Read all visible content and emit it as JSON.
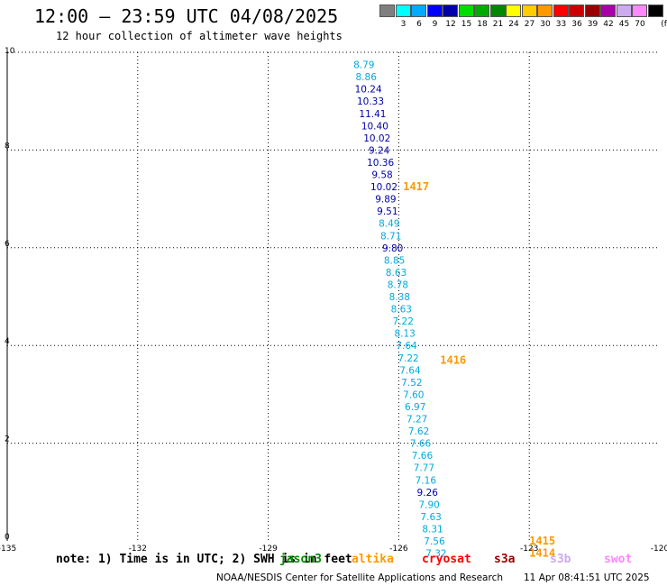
{
  "header": {
    "title": "12:00 – 23:59 UTC 04/08/2025",
    "subtitle": "12 hour collection of altimeter wave heights"
  },
  "legend": {
    "unit": "(ft)",
    "items": [
      {
        "label": "",
        "color": "#7f7f7f"
      },
      {
        "label": "3",
        "color": "#00ffff"
      },
      {
        "label": "6",
        "color": "#00aaff"
      },
      {
        "label": "9",
        "color": "#0000ff"
      },
      {
        "label": "12",
        "color": "#0000aa"
      },
      {
        "label": "15",
        "color": "#00dd00"
      },
      {
        "label": "18",
        "color": "#00aa00"
      },
      {
        "label": "21",
        "color": "#008800"
      },
      {
        "label": "24",
        "color": "#ffff00"
      },
      {
        "label": "27",
        "color": "#ffcc00"
      },
      {
        "label": "30",
        "color": "#ff9900"
      },
      {
        "label": "33",
        "color": "#ff0000"
      },
      {
        "label": "36",
        "color": "#cc0000"
      },
      {
        "label": "39",
        "color": "#990000"
      },
      {
        "label": "42",
        "color": "#aa00aa"
      },
      {
        "label": "45",
        "color": "#ccaaee"
      },
      {
        "label": "70",
        "color": "#ff88ff"
      },
      {
        "label": "",
        "color": "#000000"
      }
    ]
  },
  "chart_data": {
    "type": "scatter",
    "xlim": [
      -135,
      -120
    ],
    "ylim": [
      0,
      10
    ],
    "x_ticks": [
      "-135",
      "-132",
      "-129",
      "-126",
      "-123",
      "-120"
    ],
    "y_ticks": [
      "0",
      "2",
      "4",
      "6",
      "8",
      "10"
    ],
    "grid": true,
    "colors": {
      "light": "#00aadd",
      "dark": "#0000aa",
      "time": "#ff9900"
    },
    "points": [
      {
        "x": -126.8,
        "y": 9.75,
        "value": "8.79",
        "shade": "light"
      },
      {
        "x": -126.75,
        "y": 9.5,
        "value": "8.86",
        "shade": "light"
      },
      {
        "x": -126.7,
        "y": 9.25,
        "value": "10.24",
        "shade": "dark"
      },
      {
        "x": -126.65,
        "y": 9.0,
        "value": "10.33",
        "shade": "dark"
      },
      {
        "x": -126.6,
        "y": 8.75,
        "value": "11.41",
        "shade": "dark"
      },
      {
        "x": -126.55,
        "y": 8.5,
        "value": "10.40",
        "shade": "dark"
      },
      {
        "x": -126.5,
        "y": 8.25,
        "value": "10.02",
        "shade": "dark"
      },
      {
        "x": -126.45,
        "y": 8.0,
        "value": "9.24",
        "shade": "dark"
      },
      {
        "x": -126.42,
        "y": 7.75,
        "value": "10.36",
        "shade": "dark"
      },
      {
        "x": -126.38,
        "y": 7.5,
        "value": "9.58",
        "shade": "dark"
      },
      {
        "x": -126.34,
        "y": 7.25,
        "value": "10.02",
        "shade": "dark"
      },
      {
        "x": -126.3,
        "y": 7.0,
        "value": "9.89",
        "shade": "dark"
      },
      {
        "x": -126.26,
        "y": 6.75,
        "value": "9.51",
        "shade": "dark"
      },
      {
        "x": -126.22,
        "y": 6.5,
        "value": "8.49",
        "shade": "light"
      },
      {
        "x": -126.18,
        "y": 6.25,
        "value": "8.71",
        "shade": "light"
      },
      {
        "x": -126.14,
        "y": 6.0,
        "value": "9.80",
        "shade": "dark"
      },
      {
        "x": -126.1,
        "y": 5.75,
        "value": "8.85",
        "shade": "light"
      },
      {
        "x": -126.06,
        "y": 5.5,
        "value": "8.63",
        "shade": "light"
      },
      {
        "x": -126.02,
        "y": 5.25,
        "value": "8.78",
        "shade": "light"
      },
      {
        "x": -125.98,
        "y": 5.0,
        "value": "8.38",
        "shade": "light"
      },
      {
        "x": -125.94,
        "y": 4.75,
        "value": "8.63",
        "shade": "light"
      },
      {
        "x": -125.9,
        "y": 4.5,
        "value": "7.22",
        "shade": "light"
      },
      {
        "x": -125.86,
        "y": 4.25,
        "value": "8.13",
        "shade": "light"
      },
      {
        "x": -125.82,
        "y": 4.0,
        "value": "7.64",
        "shade": "light"
      },
      {
        "x": -125.78,
        "y": 3.75,
        "value": "7.22",
        "shade": "light"
      },
      {
        "x": -125.74,
        "y": 3.5,
        "value": "7.64",
        "shade": "light"
      },
      {
        "x": -125.7,
        "y": 3.25,
        "value": "7.52",
        "shade": "light"
      },
      {
        "x": -125.66,
        "y": 3.0,
        "value": "7.60",
        "shade": "light"
      },
      {
        "x": -125.62,
        "y": 2.75,
        "value": "6.97",
        "shade": "light"
      },
      {
        "x": -125.58,
        "y": 2.5,
        "value": "7.27",
        "shade": "light"
      },
      {
        "x": -125.54,
        "y": 2.25,
        "value": "7.62",
        "shade": "light"
      },
      {
        "x": -125.5,
        "y": 2.0,
        "value": "7.66",
        "shade": "light"
      },
      {
        "x": -125.46,
        "y": 1.75,
        "value": "7.66",
        "shade": "light"
      },
      {
        "x": -125.42,
        "y": 1.5,
        "value": "7.77",
        "shade": "light"
      },
      {
        "x": -125.38,
        "y": 1.25,
        "value": "7.16",
        "shade": "light"
      },
      {
        "x": -125.34,
        "y": 1.0,
        "value": "9.26",
        "shade": "dark"
      },
      {
        "x": -125.3,
        "y": 0.75,
        "value": "7.90",
        "shade": "light"
      },
      {
        "x": -125.26,
        "y": 0.5,
        "value": "7.63",
        "shade": "light"
      },
      {
        "x": -125.22,
        "y": 0.25,
        "value": "8.31",
        "shade": "light"
      },
      {
        "x": -125.18,
        "y": 0.0,
        "value": "7.56",
        "shade": "light"
      },
      {
        "x": -125.14,
        "y": -0.25,
        "value": "7.32",
        "shade": "light"
      }
    ],
    "time_labels": [
      {
        "x": -125.9,
        "y": 7.25,
        "label": "1417"
      },
      {
        "x": -125.05,
        "y": 3.7,
        "label": "1416"
      },
      {
        "x": -123.0,
        "y": 0.0,
        "label": "1415"
      },
      {
        "x": -123.0,
        "y": -0.25,
        "label": "1414"
      }
    ]
  },
  "footer": {
    "note": "note:  1) Time is in UTC; 2) SWH is in feet",
    "credit": "NOAA/NESDIS Center for Satellite Applications and Research",
    "timestamp": "11 Apr 08:41:51 UTC 2025"
  },
  "satellites": [
    {
      "name": "jason3",
      "color": "#008800"
    },
    {
      "name": "altika",
      "color": "#ff9900"
    },
    {
      "name": "cryosat",
      "color": "#ff0000"
    },
    {
      "name": "s3a",
      "color": "#990000"
    },
    {
      "name": "s3b",
      "color": "#ccaaee"
    },
    {
      "name": "swot",
      "color": "#ff88ff"
    }
  ]
}
